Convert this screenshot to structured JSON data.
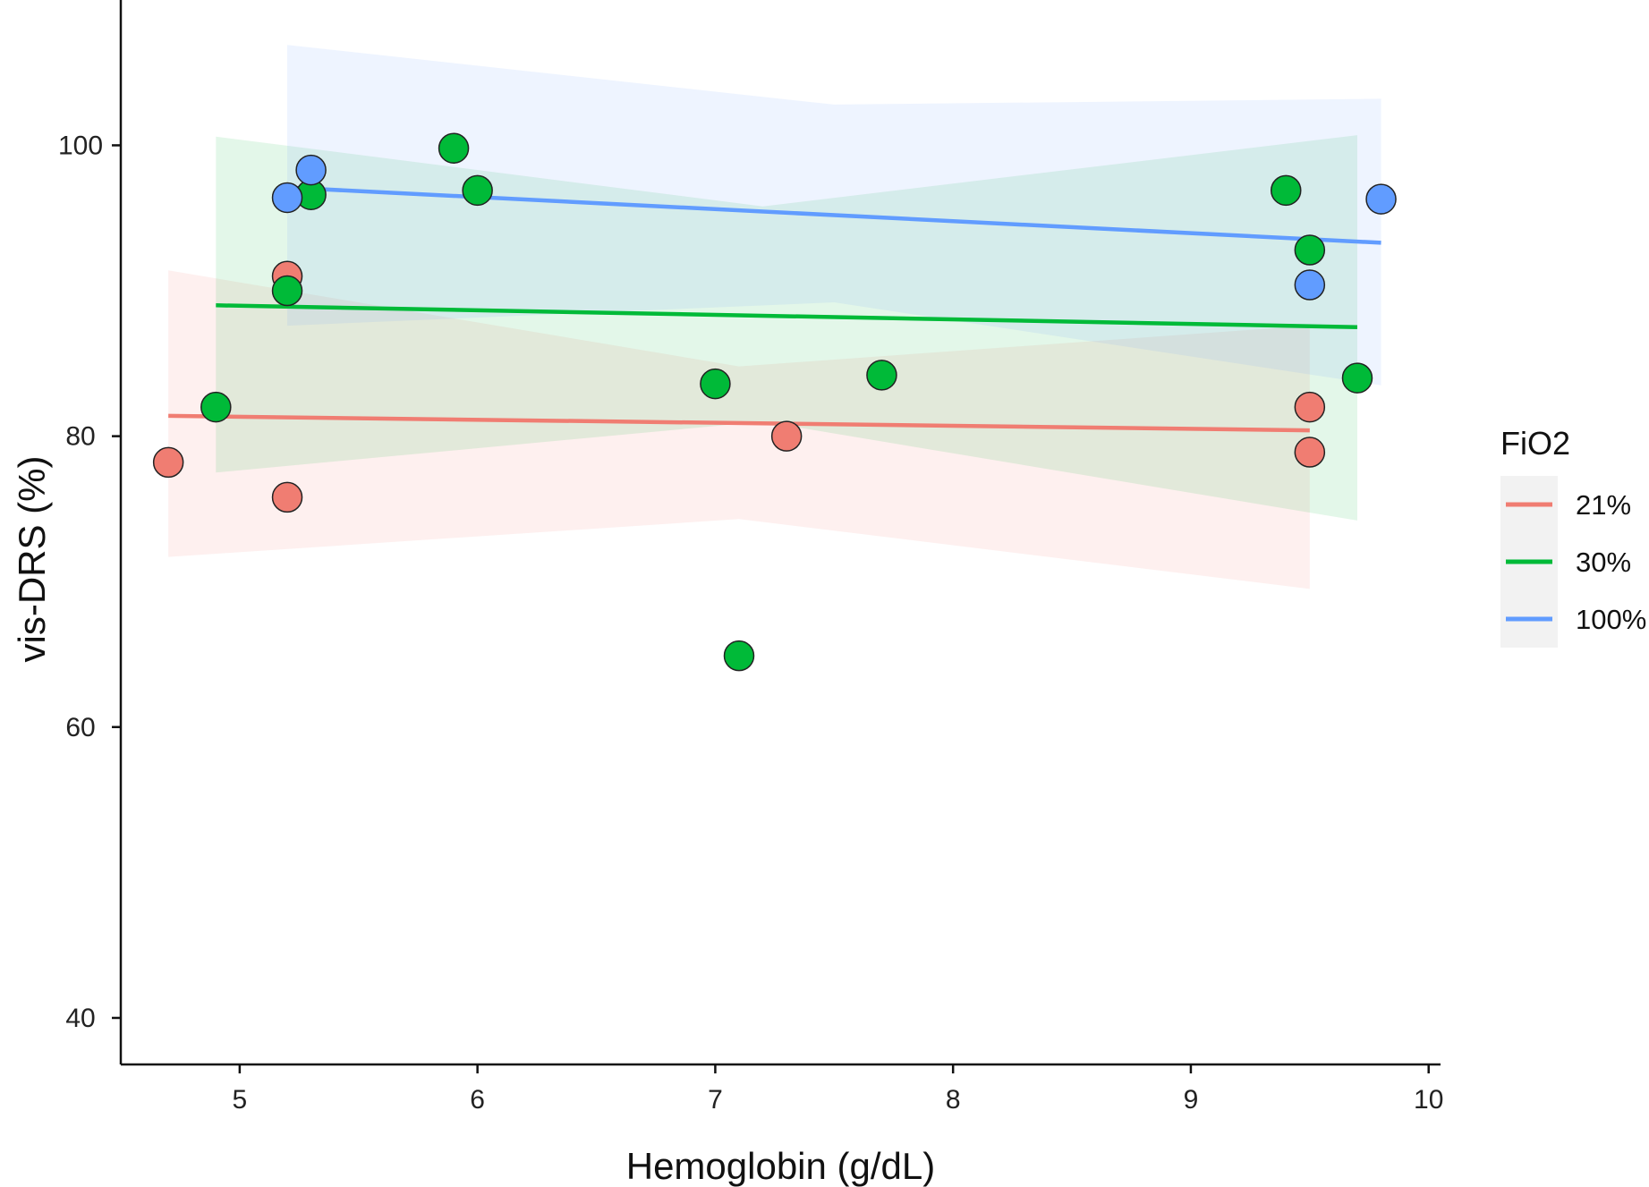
{
  "chart_data": {
    "type": "scatter",
    "xlabel": "Hemoglobin (g/dL)",
    "ylabel": "vis-DRS (%)",
    "xlim": [
      4.5,
      10.05
    ],
    "ylim": [
      36.8,
      109.5
    ],
    "xticks": [
      5,
      6,
      7,
      8,
      9,
      10
    ],
    "yticks": [
      40,
      60,
      80,
      100
    ],
    "grid": false,
    "legend": {
      "title": "FiO2",
      "placement": "right"
    },
    "series": [
      {
        "name": "21%",
        "color": "#F07D72",
        "band_color": "#F8766D",
        "points": [
          {
            "x": 4.7,
            "y": 78.2
          },
          {
            "x": 5.2,
            "y": 91.0
          },
          {
            "x": 5.2,
            "y": 75.8
          },
          {
            "x": 7.3,
            "y": 80.0
          },
          {
            "x": 9.5,
            "y": 82.0
          },
          {
            "x": 9.5,
            "y": 78.9
          }
        ],
        "fit": {
          "x": [
            4.7,
            9.5
          ],
          "y": [
            81.4,
            80.4
          ]
        },
        "band": {
          "x": [
            4.7,
            7.1,
            9.5
          ],
          "lower": [
            71.7,
            74.3,
            69.5
          ],
          "upper": [
            91.4,
            84.8,
            87.6
          ]
        }
      },
      {
        "name": "30%",
        "color": "#00BA38",
        "band_color": "#00BA38",
        "points": [
          {
            "x": 4.9,
            "y": 82.0
          },
          {
            "x": 5.2,
            "y": 90.0
          },
          {
            "x": 5.3,
            "y": 96.6
          },
          {
            "x": 5.9,
            "y": 99.8
          },
          {
            "x": 6.0,
            "y": 96.9
          },
          {
            "x": 7.0,
            "y": 83.6
          },
          {
            "x": 7.1,
            "y": 64.9
          },
          {
            "x": 7.7,
            "y": 84.2
          },
          {
            "x": 9.4,
            "y": 96.9
          },
          {
            "x": 9.5,
            "y": 92.8
          },
          {
            "x": 9.7,
            "y": 84.0
          }
        ],
        "fit": {
          "x": [
            4.9,
            9.7
          ],
          "y": [
            89.0,
            87.5
          ]
        },
        "band": {
          "x": [
            4.9,
            7.2,
            9.7
          ],
          "lower": [
            77.5,
            81.0,
            74.2
          ],
          "upper": [
            100.6,
            95.8,
            100.7
          ]
        }
      },
      {
        "name": "100%",
        "color": "#619CFF",
        "band_color": "#619CFF",
        "points": [
          {
            "x": 5.2,
            "y": 96.4
          },
          {
            "x": 5.3,
            "y": 98.3
          },
          {
            "x": 9.5,
            "y": 90.4
          },
          {
            "x": 9.8,
            "y": 96.3
          }
        ],
        "fit": {
          "x": [
            5.2,
            9.8
          ],
          "y": [
            97.1,
            93.3
          ]
        },
        "band": {
          "x": [
            5.2,
            7.5,
            9.8
          ],
          "lower": [
            87.6,
            89.2,
            83.5
          ],
          "upper": [
            106.9,
            102.8,
            103.2
          ]
        }
      }
    ]
  }
}
